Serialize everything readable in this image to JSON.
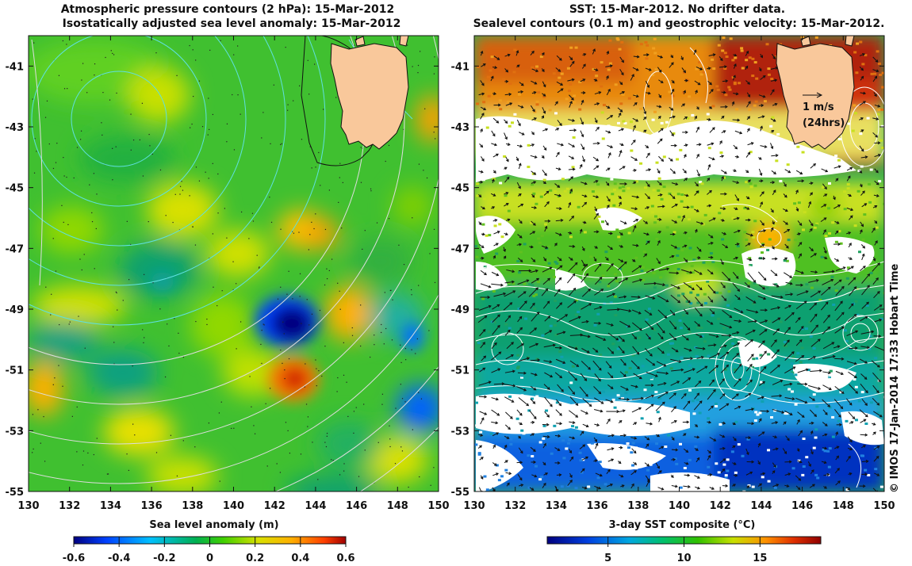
{
  "left_panel": {
    "title_line1": "Atmospheric pressure contours (2 hPa): 15-Mar-2012",
    "title_line2": "Isostatically adjusted sea level anomaly: 15-Mar-2012",
    "colorbar_label": "Sea level anomaly (m)",
    "colorbar_ticks": [
      "-0.6",
      "-0.4",
      "-0.2",
      "0",
      "0.2",
      "0.4",
      "0.6"
    ]
  },
  "right_panel": {
    "title_line1": "SST: 15-Mar-2012. No drifter data.",
    "title_line2": "Sealevel contours (0.1 m) and geostrophic velocity: 15-Mar-2012.",
    "colorbar_label": "3-day SST composite (°C)",
    "colorbar_ticks": [
      "5",
      "10",
      "15"
    ],
    "scale_arrow_label": "1 m/s",
    "scale_arrow_sublabel": "(24hrs)"
  },
  "axes": {
    "lon_ticks": [
      "130",
      "132",
      "134",
      "136",
      "138",
      "140",
      "142",
      "144",
      "146",
      "148",
      "150"
    ],
    "lat_ticks": [
      "-41",
      "-43",
      "-45",
      "-47",
      "-49",
      "-51",
      "-53",
      "-55"
    ],
    "lon_range": [
      130,
      150
    ],
    "lat_range": [
      -55,
      -40
    ]
  },
  "credit": "© IMOS 17-Jan-2014 17:33 Hobart Time",
  "colors": {
    "land": "#f9c89b",
    "sla_scale": [
      "#00007f",
      "#0050ff",
      "#00c8ff",
      "#00c060",
      "#40d000",
      "#d0e000",
      "#ffb000",
      "#ff4000",
      "#a00000"
    ],
    "sst_scale": [
      "#00007f",
      "#0040e0",
      "#00b0e0",
      "#00c080",
      "#30c000",
      "#c0e000",
      "#ff9000",
      "#e03000",
      "#900000"
    ]
  }
}
